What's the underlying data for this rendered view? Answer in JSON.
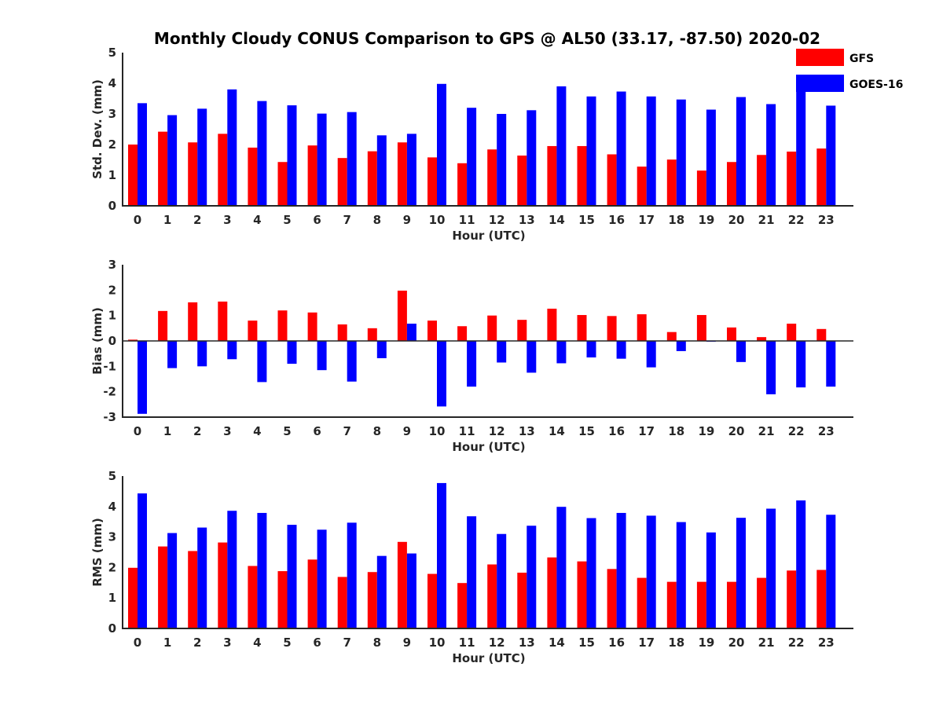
{
  "chart_data": {
    "type": "bar",
    "title": "Monthly Cloudy CONUS Comparison to GPS @ AL50 (33.17, -87.50) 2020-02",
    "legend": {
      "position": "top-right",
      "entries": [
        {
          "name": "GFS",
          "color": "#ff0000"
        },
        {
          "name": "GOES-16",
          "color": "#0000ff"
        }
      ]
    },
    "categories": [
      "0",
      "1",
      "2",
      "3",
      "4",
      "5",
      "6",
      "7",
      "8",
      "9",
      "10",
      "11",
      "12",
      "13",
      "14",
      "15",
      "16",
      "17",
      "18",
      "19",
      "20",
      "21",
      "22",
      "23"
    ],
    "panels": [
      {
        "name": "std-dev",
        "ylabel": "Std. Dev. (mm)",
        "xlabel": "Hour (UTC)",
        "ylim": [
          0,
          5
        ],
        "yticks": [
          "0",
          "1",
          "2",
          "3",
          "4",
          "5"
        ],
        "series": [
          {
            "name": "GFS",
            "values": [
              2.0,
              2.42,
              2.07,
              2.35,
              1.9,
              1.43,
              1.97,
              1.56,
              1.78,
              2.07,
              1.58,
              1.39,
              1.84,
              1.64,
              1.95,
              1.95,
              1.68,
              1.28,
              1.51,
              1.15,
              1.43,
              1.66,
              1.77,
              1.87
            ]
          },
          {
            "name": "GOES-16",
            "values": [
              3.35,
              2.96,
              3.17,
              3.8,
              3.42,
              3.28,
              3.01,
              3.06,
              2.3,
              2.35,
              3.98,
              3.2,
              3.0,
              3.12,
              3.9,
              3.57,
              3.73,
              3.57,
              3.47,
              3.14,
              3.55,
              3.32,
              3.75,
              3.27
            ]
          }
        ]
      },
      {
        "name": "bias",
        "ylabel": "Bias (mm)",
        "xlabel": "Hour (UTC)",
        "ylim": [
          -3,
          3
        ],
        "yticks": [
          "-3",
          "-2",
          "-1",
          "0",
          "1",
          "2",
          "3"
        ],
        "series": [
          {
            "name": "GFS",
            "values": [
              0.05,
              1.18,
              1.52,
              1.55,
              0.8,
              1.2,
              1.12,
              0.65,
              0.5,
              1.98,
              0.8,
              0.58,
              1.0,
              0.83,
              1.27,
              1.02,
              0.98,
              1.05,
              0.35,
              1.02,
              0.53,
              0.15,
              0.68,
              0.47
            ]
          },
          {
            "name": "GOES-16",
            "values": [
              -2.87,
              -1.07,
              -1.0,
              -0.72,
              -1.62,
              -0.9,
              -1.15,
              -1.6,
              -0.68,
              0.68,
              -2.58,
              -1.8,
              -0.85,
              -1.25,
              -0.88,
              -0.65,
              -0.7,
              -1.04,
              -0.4,
              -0.03,
              -0.83,
              -2.1,
              -1.83,
              -1.8
            ]
          }
        ]
      },
      {
        "name": "rms",
        "ylabel": "RMS (mm)",
        "xlabel": "Hour (UTC)",
        "ylim": [
          0,
          5
        ],
        "yticks": [
          "0",
          "1",
          "2",
          "3",
          "4",
          "5"
        ],
        "series": [
          {
            "name": "GFS",
            "values": [
              1.99,
              2.69,
              2.54,
              2.82,
              2.05,
              1.88,
              2.26,
              1.69,
              1.85,
              2.84,
              1.79,
              1.49,
              2.1,
              1.83,
              2.33,
              2.2,
              1.95,
              1.66,
              1.53,
              1.53,
              1.53,
              1.66,
              1.9,
              1.92
            ]
          },
          {
            "name": "GOES-16",
            "values": [
              4.43,
              3.13,
              3.31,
              3.86,
              3.79,
              3.4,
              3.24,
              3.47,
              2.38,
              2.46,
              4.77,
              3.68,
              3.1,
              3.37,
              3.99,
              3.62,
              3.79,
              3.7,
              3.49,
              3.15,
              3.63,
              3.93,
              4.2,
              3.73
            ]
          }
        ]
      }
    ]
  }
}
